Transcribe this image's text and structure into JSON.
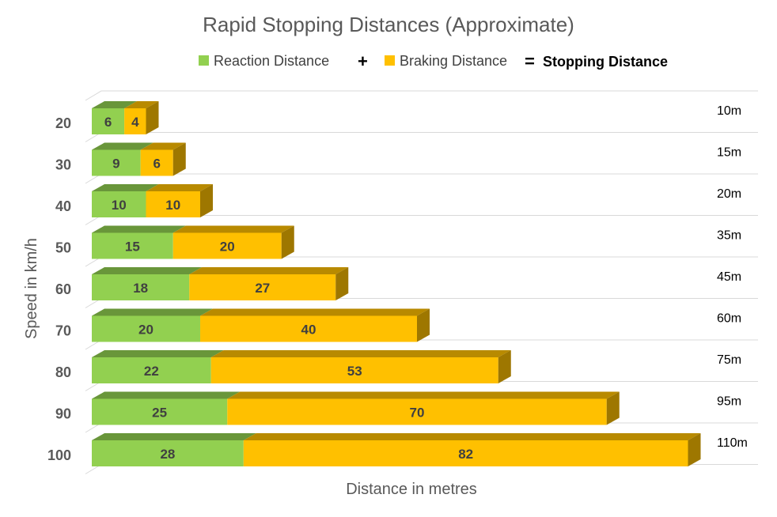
{
  "chart_data": {
    "type": "bar",
    "orientation": "horizontal",
    "stacked": true,
    "three_d": true,
    "title": "Rapid Stopping Distances (Approximate)",
    "xlabel": "Distance in metres",
    "ylabel": "Speed in km/h",
    "categories": [
      "20",
      "30",
      "40",
      "50",
      "60",
      "70",
      "80",
      "90",
      "100"
    ],
    "series": [
      {
        "name": "Reaction Distance",
        "color": "#92d050",
        "values": [
          6,
          9,
          10,
          15,
          18,
          20,
          22,
          25,
          28
        ]
      },
      {
        "name": "Braking Distance",
        "color": "#ffc000",
        "values": [
          4,
          6,
          10,
          20,
          27,
          40,
          53,
          70,
          82
        ]
      }
    ],
    "totals": [
      "10m",
      "15m",
      "20m",
      "35m",
      "45m",
      "60m",
      "75m",
      "95m",
      "110m"
    ],
    "legend": {
      "position": "top",
      "plus": "+",
      "equals": "=",
      "total_label": "Stopping Distance"
    },
    "xlim": [
      0,
      110
    ],
    "grid": true,
    "x_ticks_shown": false
  }
}
